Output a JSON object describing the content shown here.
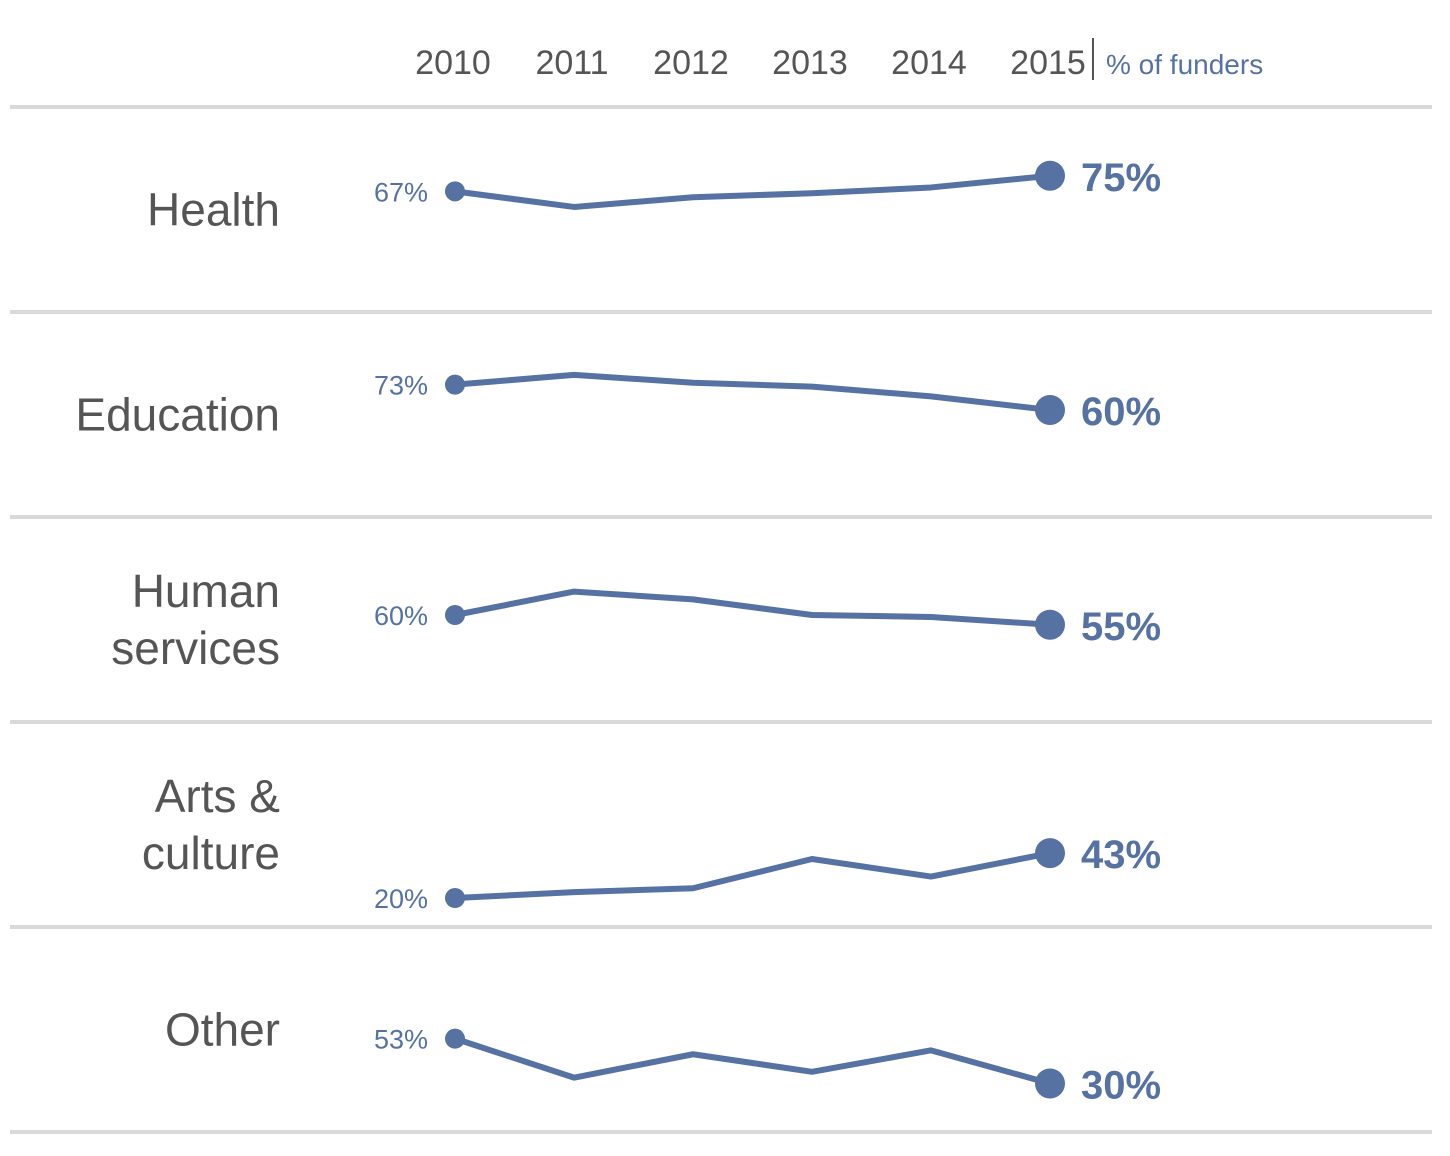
{
  "chart_data": {
    "type": "line",
    "unit_label": "% of funders",
    "x": [
      "2010",
      "2011",
      "2012",
      "2013",
      "2014",
      "2015"
    ],
    "series": [
      {
        "name": "Health",
        "label_lines": [
          "Health"
        ],
        "values": [
          67,
          59,
          64,
          66,
          69,
          75
        ],
        "start_label": "67%",
        "end_label": "75%"
      },
      {
        "name": "Education",
        "label_lines": [
          "Education"
        ],
        "values": [
          73,
          78,
          74,
          72,
          67,
          60
        ],
        "start_label": "73%",
        "end_label": "60%"
      },
      {
        "name": "Human services",
        "label_lines": [
          "Human",
          "services"
        ],
        "values": [
          60,
          72,
          68,
          60,
          59,
          55
        ],
        "start_label": "60%",
        "end_label": "55%"
      },
      {
        "name": "Arts & culture",
        "label_lines": [
          "Arts &",
          "culture"
        ],
        "values": [
          20,
          23,
          25,
          40,
          31,
          43
        ],
        "start_label": "20%",
        "end_label": "43%"
      },
      {
        "name": "Other",
        "label_lines": [
          "Other"
        ],
        "values": [
          53,
          33,
          45,
          36,
          47,
          30
        ],
        "start_label": "53%",
        "end_label": "30%"
      }
    ],
    "ylim": [
      0,
      100
    ],
    "grid": false,
    "colors": {
      "line": "#5672a3",
      "divider": "#d9d9d9",
      "text": "#555555"
    }
  }
}
